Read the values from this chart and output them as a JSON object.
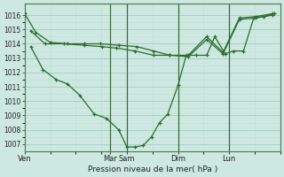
{
  "background_color": "#cce8e0",
  "grid_major_color": "#aad0c8",
  "grid_minor_color": "#c0e0d8",
  "line_color": "#2d6b2d",
  "marker": "+",
  "xlabel_text": "Pression niveau de la mer( hPa )",
  "x_ticks_labels": [
    "Ven",
    "Mar",
    "Sam",
    "Dim",
    "Lun"
  ],
  "x_ticks_pos": [
    0.0,
    4.17,
    5.0,
    7.5,
    10.0
  ],
  "xlim": [
    0,
    12.5
  ],
  "ylim": [
    1006.5,
    1016.8
  ],
  "yticks": [
    1007,
    1008,
    1009,
    1010,
    1011,
    1012,
    1013,
    1014,
    1015,
    1016
  ],
  "vlines_x": [
    4.17,
    5.0,
    7.5,
    10.0
  ],
  "series": [
    {
      "x": [
        0.0,
        0.55,
        1.25,
        2.1,
        2.9,
        3.7,
        4.6,
        5.5,
        6.3,
        7.1,
        8.0,
        8.9,
        9.7,
        10.5,
        11.3,
        12.1
      ],
      "y": [
        1016.1,
        1014.8,
        1014.1,
        1014.0,
        1014.0,
        1014.0,
        1013.9,
        1013.8,
        1013.5,
        1013.2,
        1013.2,
        1014.5,
        1013.4,
        1015.8,
        1015.9,
        1016.1
      ]
    },
    {
      "x": [
        0.3,
        1.0,
        1.9,
        2.9,
        3.8,
        4.5,
        5.4,
        6.3,
        7.1,
        8.0,
        8.9,
        9.7,
        10.5,
        11.3,
        12.1
      ],
      "y": [
        1014.9,
        1014.0,
        1014.0,
        1013.9,
        1013.8,
        1013.7,
        1013.5,
        1013.2,
        1013.2,
        1013.1,
        1014.3,
        1013.3,
        1015.7,
        1015.8,
        1016.0
      ]
    },
    {
      "x": [
        0.3,
        0.9,
        1.55,
        2.1,
        2.7,
        3.4,
        4.0,
        4.6,
        5.0,
        5.4,
        5.8,
        6.2,
        6.6,
        7.0,
        7.5,
        7.9,
        8.4,
        8.9,
        9.3,
        9.8,
        10.2,
        10.7,
        11.2,
        11.7,
        12.2
      ],
      "y": [
        1013.8,
        1012.2,
        1011.5,
        1011.2,
        1010.4,
        1009.1,
        1008.8,
        1008.0,
        1006.8,
        1006.8,
        1006.9,
        1007.5,
        1008.5,
        1009.1,
        1011.1,
        1013.2,
        1013.2,
        1013.2,
        1014.5,
        1013.3,
        1013.5,
        1013.5,
        1015.8,
        1015.9,
        1016.1
      ]
    }
  ]
}
